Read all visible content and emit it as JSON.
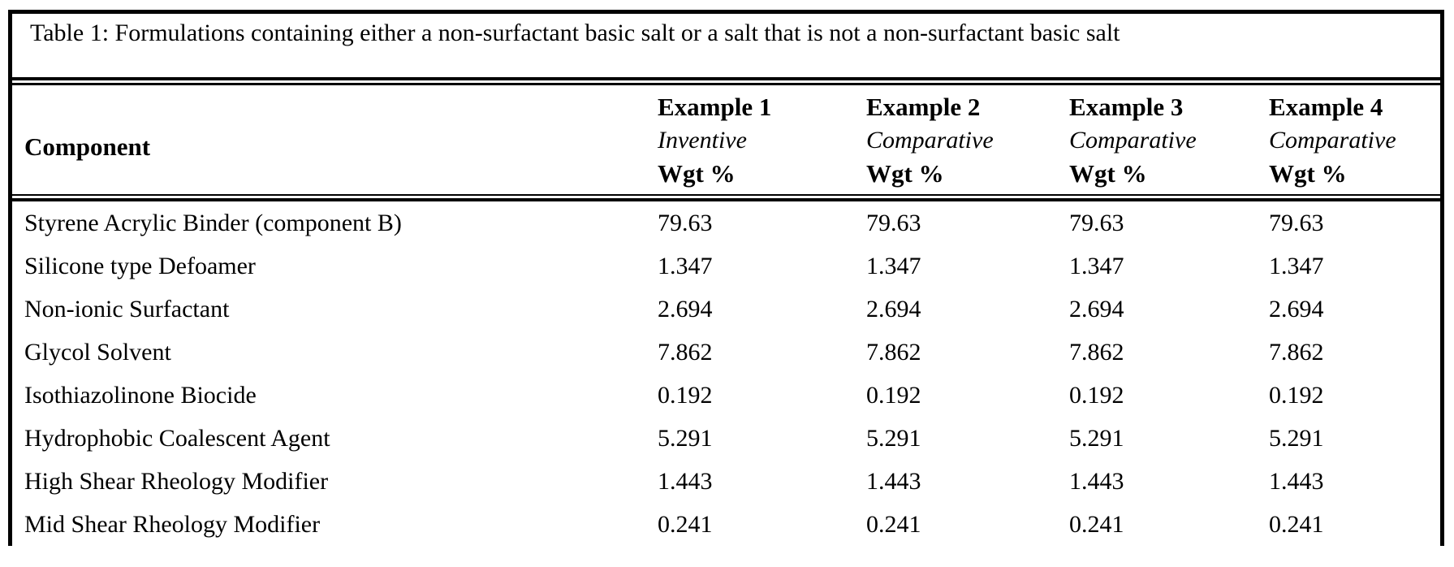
{
  "table": {
    "title": "Table 1: Formulations containing either a non-surfactant basic salt or a salt that is not a non-surfactant basic salt",
    "component_header": "Component",
    "columns": [
      {
        "example": "Example 1",
        "type": "Inventive",
        "unit": "Wgt %"
      },
      {
        "example": "Example 2",
        "type": "Comparative",
        "unit": "Wgt %"
      },
      {
        "example": "Example 3",
        "type": "Comparative",
        "unit": "Wgt %"
      },
      {
        "example": "Example 4",
        "type": "Comparative",
        "unit": "Wgt %"
      }
    ],
    "rows": [
      {
        "component": "Styrene Acrylic Binder (component B)",
        "values": [
          "79.63",
          "79.63",
          "79.63",
          "79.63"
        ]
      },
      {
        "component": "Silicone type Defoamer",
        "values": [
          "1.347",
          "1.347",
          "1.347",
          "1.347"
        ]
      },
      {
        "component": "Non-ionic Surfactant",
        "values": [
          "2.694",
          "2.694",
          "2.694",
          "2.694"
        ]
      },
      {
        "component": "Glycol Solvent",
        "values": [
          "7.862",
          "7.862",
          "7.862",
          "7.862"
        ]
      },
      {
        "component": "Isothiazolinone Biocide",
        "values": [
          "0.192",
          "0.192",
          "0.192",
          "0.192"
        ]
      },
      {
        "component": "Hydrophobic Coalescent Agent",
        "values": [
          "5.291",
          "5.291",
          "5.291",
          "5.291"
        ]
      },
      {
        "component": "High Shear Rheology Modifier",
        "values": [
          "1.443",
          "1.443",
          "1.443",
          "1.443"
        ]
      },
      {
        "component": "Mid Shear Rheology Modifier",
        "values": [
          "0.241",
          "0.241",
          "0.241",
          "0.241"
        ]
      }
    ],
    "colors": {
      "ink": "#000000",
      "paper": "#ffffff"
    }
  }
}
